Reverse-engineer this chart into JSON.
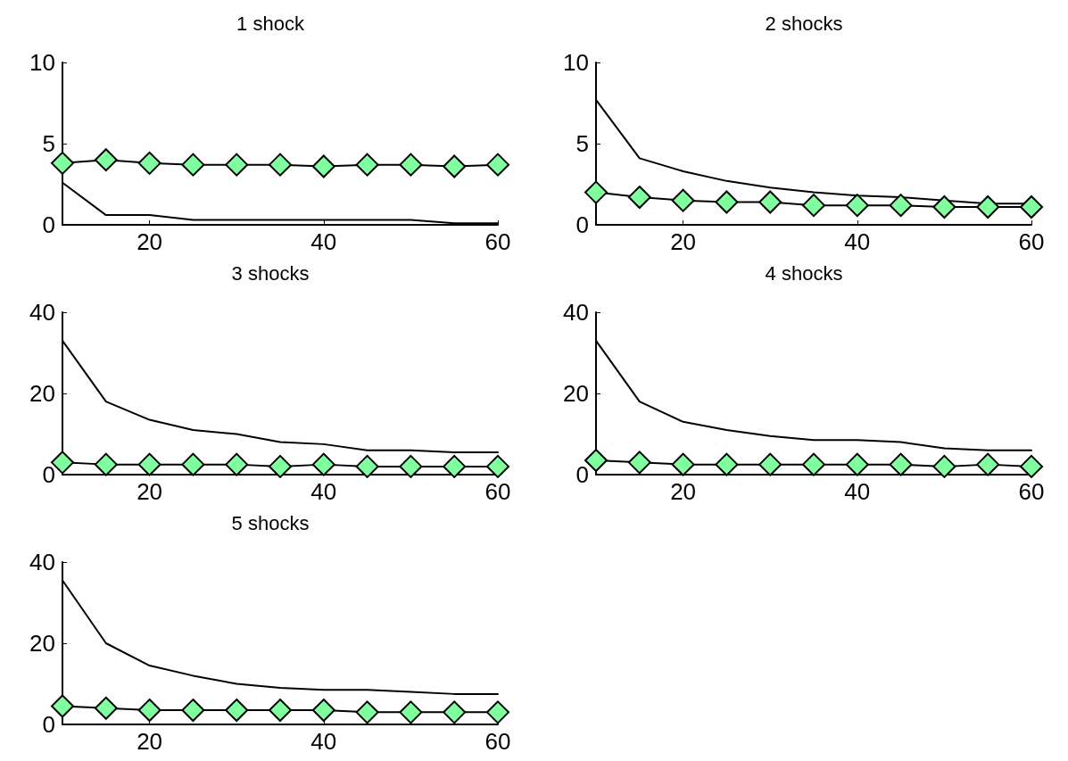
{
  "chart_data": [
    {
      "type": "line",
      "title": "1 shock",
      "x": [
        10,
        15,
        20,
        25,
        30,
        35,
        40,
        45,
        50,
        55,
        60
      ],
      "xlim": [
        10,
        60
      ],
      "xticks": [
        20,
        40,
        60
      ],
      "ylim": [
        0,
        10
      ],
      "yticks": [
        0,
        5,
        10
      ],
      "grid": false,
      "series": [
        {
          "color": "#000000",
          "marker": "none",
          "values": [
            2.6,
            0.6,
            0.6,
            0.3,
            0.3,
            0.3,
            0.3,
            0.3,
            0.3,
            0.1,
            0.1
          ]
        },
        {
          "color": "#80ff9f",
          "marker": "diamond",
          "values": [
            3.8,
            4.0,
            3.8,
            3.7,
            3.7,
            3.7,
            3.6,
            3.7,
            3.7,
            3.6,
            3.7
          ]
        }
      ]
    },
    {
      "type": "line",
      "title": "2 shocks",
      "x": [
        10,
        15,
        20,
        25,
        30,
        35,
        40,
        45,
        50,
        55,
        60
      ],
      "xlim": [
        10,
        60
      ],
      "xticks": [
        20,
        40,
        60
      ],
      "ylim": [
        0,
        10
      ],
      "yticks": [
        0,
        5,
        10
      ],
      "grid": false,
      "series": [
        {
          "color": "#000000",
          "marker": "none",
          "values": [
            7.7,
            4.1,
            3.3,
            2.7,
            2.3,
            2.0,
            1.8,
            1.7,
            1.5,
            1.3,
            1.3
          ]
        },
        {
          "color": "#80ff9f",
          "marker": "diamond",
          "values": [
            2.0,
            1.7,
            1.5,
            1.4,
            1.4,
            1.2,
            1.2,
            1.2,
            1.1,
            1.1,
            1.1
          ]
        }
      ]
    },
    {
      "type": "line",
      "title": "3 shocks",
      "x": [
        10,
        15,
        20,
        25,
        30,
        35,
        40,
        45,
        50,
        55,
        60
      ],
      "xlim": [
        10,
        60
      ],
      "xticks": [
        20,
        40,
        60
      ],
      "ylim": [
        0,
        40
      ],
      "yticks": [
        0,
        20,
        40
      ],
      "grid": false,
      "series": [
        {
          "color": "#000000",
          "marker": "none",
          "values": [
            33,
            18,
            13.5,
            11,
            10,
            8,
            7.5,
            6,
            6,
            5.5,
            5.5
          ]
        },
        {
          "color": "#80ff9f",
          "marker": "diamond",
          "values": [
            3,
            2.5,
            2.5,
            2.5,
            2.5,
            2,
            2.5,
            2,
            2,
            2,
            2
          ]
        }
      ]
    },
    {
      "type": "line",
      "title": "4 shocks",
      "x": [
        10,
        15,
        20,
        25,
        30,
        35,
        40,
        45,
        50,
        55,
        60
      ],
      "xlim": [
        10,
        60
      ],
      "xticks": [
        20,
        40,
        60
      ],
      "ylim": [
        0,
        40
      ],
      "yticks": [
        0,
        20,
        40
      ],
      "grid": false,
      "series": [
        {
          "color": "#000000",
          "marker": "none",
          "values": [
            33,
            18,
            13,
            11,
            9.5,
            8.5,
            8.5,
            8,
            6.5,
            6,
            6
          ]
        },
        {
          "color": "#80ff9f",
          "marker": "diamond",
          "values": [
            3.5,
            3,
            2.5,
            2.5,
            2.5,
            2.5,
            2.5,
            2.5,
            2,
            2.5,
            2
          ]
        }
      ]
    },
    {
      "type": "line",
      "title": "5 shocks",
      "x": [
        10,
        15,
        20,
        25,
        30,
        35,
        40,
        45,
        50,
        55,
        60
      ],
      "xlim": [
        10,
        60
      ],
      "xticks": [
        20,
        40,
        60
      ],
      "ylim": [
        0,
        40
      ],
      "yticks": [
        0,
        20,
        40
      ],
      "grid": false,
      "series": [
        {
          "color": "#000000",
          "marker": "none",
          "values": [
            35.5,
            20,
            14.5,
            12,
            10,
            9,
            8.5,
            8.5,
            8,
            7.5,
            7.5
          ]
        },
        {
          "color": "#80ff9f",
          "marker": "diamond",
          "values": [
            4.5,
            4,
            3.5,
            3.5,
            3.5,
            3.5,
            3.5,
            3,
            3,
            3,
            3
          ]
        }
      ]
    }
  ]
}
